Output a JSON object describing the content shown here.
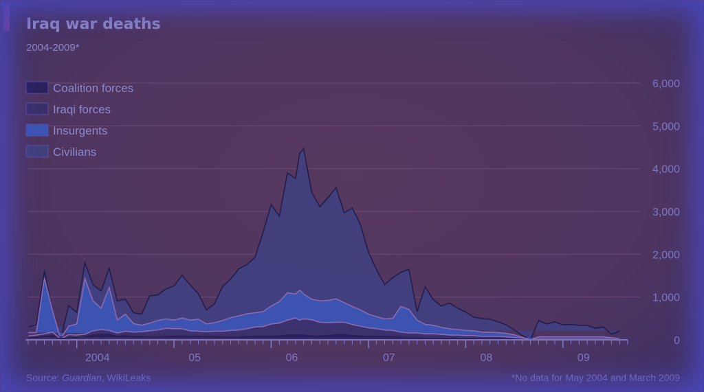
{
  "header": {
    "title": "Iraq war deaths",
    "subtitle": "2004-2009*"
  },
  "footer": {
    "source_prefix": "Source: ",
    "source_italic": "Guardian",
    "source_suffix": ", WikiLeaks",
    "note": "*No data for May 2004 and March 2009"
  },
  "colors": {
    "coalition": "#2a2160",
    "iraqi": "#3a2f6a",
    "insurgents": "#3c54b5",
    "civilians": "#40407e",
    "gridline": "#6a4a78",
    "text": "#8e87c8",
    "axis": "#7e78c4"
  },
  "chart_data": {
    "type": "area",
    "stacked": true,
    "title": "Iraq war deaths",
    "subtitle": "2004-2009*",
    "y_axis_position": "right",
    "ylim": [
      0,
      6000
    ],
    "yticks": [
      0,
      1000,
      2000,
      3000,
      4000,
      5000,
      6000
    ],
    "ytick_labels": [
      "0",
      "1,000",
      "2,000",
      "3,000",
      "4,000",
      "5,000",
      "6,000"
    ],
    "xlim": [
      0,
      66
    ],
    "xtick_labels": [
      {
        "label": "2004",
        "x": 6
      },
      {
        "label": "05",
        "x": 18
      },
      {
        "label": "06",
        "x": 30
      },
      {
        "label": "07",
        "x": 42
      },
      {
        "label": "08",
        "x": 54
      },
      {
        "label": "09",
        "x": 66
      }
    ],
    "grid": true,
    "legend_position": "top-left",
    "legend": [
      "Coalition forces",
      "Iraqi forces",
      "Insurgents",
      "Civilians"
    ],
    "x_months": [
      0,
      1,
      2,
      3,
      4,
      5,
      6,
      7,
      8,
      9,
      10,
      11,
      12,
      13,
      14,
      15,
      16,
      17,
      18,
      19,
      20,
      21,
      22,
      23,
      24,
      25,
      26,
      27,
      28,
      29,
      30,
      31,
      32,
      33,
      33.5,
      34,
      35,
      36,
      37,
      38,
      39,
      40,
      41,
      42,
      43,
      44,
      45,
      46,
      47,
      48,
      49,
      50,
      51,
      52,
      53,
      54,
      55,
      56,
      57,
      58,
      59,
      60,
      61,
      62,
      63,
      64,
      65,
      66,
      67,
      68,
      69,
      70,
      71,
      72,
      73,
      74
    ],
    "series": [
      {
        "name": "Coalition forces",
        "values": [
          50,
          60,
          80,
          100,
          10,
          60,
          50,
          60,
          110,
          130,
          120,
          80,
          100,
          70,
          70,
          60,
          60,
          70,
          80,
          90,
          80,
          80,
          70,
          70,
          60,
          60,
          60,
          70,
          80,
          80,
          90,
          90,
          110,
          110,
          110,
          110,
          90,
          90,
          100,
          120,
          120,
          100,
          90,
          80,
          80,
          80,
          70,
          60,
          50,
          50,
          40,
          40,
          40,
          30,
          30,
          30,
          30,
          20,
          20,
          20,
          20,
          15,
          10,
          0,
          10,
          10,
          10,
          10,
          10,
          10,
          10,
          10,
          10,
          10,
          5
        ]
      },
      {
        "name": "Iraqi forces",
        "values": [
          40,
          50,
          60,
          80,
          10,
          60,
          60,
          70,
          100,
          110,
          100,
          80,
          100,
          110,
          120,
          150,
          170,
          200,
          180,
          170,
          130,
          120,
          120,
          130,
          140,
          160,
          170,
          190,
          220,
          230,
          280,
          300,
          350,
          400,
          350,
          380,
          380,
          320,
          300,
          290,
          290,
          260,
          230,
          200,
          180,
          150,
          150,
          120,
          110,
          110,
          100,
          100,
          90,
          80,
          80,
          70,
          70,
          60,
          60,
          60,
          50,
          40,
          30,
          0,
          20,
          20,
          20,
          20,
          20,
          20,
          20,
          20,
          20,
          20,
          10
        ]
      },
      {
        "name": "Insurgents",
        "values": [
          80,
          60,
          1300,
          500,
          0,
          200,
          260,
          1300,
          700,
          500,
          1000,
          300,
          400,
          200,
          150,
          180,
          220,
          220,
          200,
          250,
          250,
          280,
          180,
          200,
          250,
          300,
          330,
          350,
          330,
          350,
          420,
          500,
          640,
          560,
          700,
          580,
          480,
          500,
          520,
          550,
          460,
          420,
          380,
          320,
          280,
          260,
          280,
          600,
          550,
          300,
          220,
          200,
          160,
          150,
          130,
          120,
          110,
          100,
          100,
          90,
          80,
          60,
          20,
          0,
          40,
          40,
          40,
          40,
          40,
          40,
          40,
          40,
          40,
          20,
          10
        ]
      },
      {
        "name": "Civilians",
        "values": [
          130,
          180,
          170,
          0,
          0,
          480,
          270,
          370,
          380,
          400,
          450,
          450,
          350,
          250,
          260,
          640,
          600,
          700,
          800,
          1000,
          820,
          600,
          330,
          440,
          800,
          900,
          1100,
          1150,
          1300,
          1850,
          2370,
          2000,
          2800,
          2700,
          3200,
          3400,
          2500,
          2200,
          2400,
          2600,
          2100,
          2300,
          2000,
          1450,
          1100,
          800,
          950,
          800,
          940,
          200,
          880,
          600,
          500,
          600,
          500,
          430,
          320,
          320,
          300,
          250,
          200,
          120,
          40,
          0,
          380,
          300,
          350,
          280,
          290,
          270,
          270,
          200,
          230,
          80,
          180
        ]
      }
    ]
  }
}
